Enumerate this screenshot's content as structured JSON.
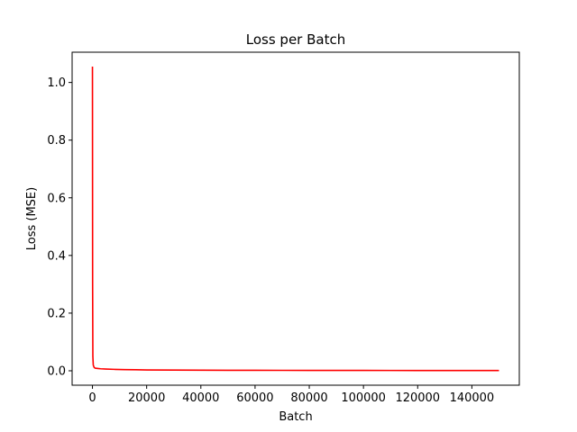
{
  "chart_data": {
    "type": "line",
    "title": "Loss per Batch",
    "xlabel": "Batch",
    "ylabel": "Loss (MSE)",
    "xlim": [
      -7500,
      157500
    ],
    "ylim": [
      -0.05,
      1.105
    ],
    "xticks": [
      0,
      20000,
      40000,
      60000,
      80000,
      100000,
      120000,
      140000
    ],
    "xtick_labels": [
      "0",
      "20000",
      "40000",
      "60000",
      "80000",
      "100000",
      "120000",
      "140000"
    ],
    "yticks": [
      0.0,
      0.2,
      0.4,
      0.6,
      0.8,
      1.0
    ],
    "ytick_labels": [
      "0.0",
      "0.2",
      "0.4",
      "0.6",
      "0.8",
      "1.0"
    ],
    "grid": false,
    "series": [
      {
        "color": "#ff0000",
        "x": [
          0,
          60,
          150,
          300,
          600,
          1000,
          2000,
          3000,
          5000,
          8000,
          12000,
          16000,
          20000,
          30000,
          40000,
          50000,
          60000,
          70000,
          80000,
          90000,
          100000,
          110000,
          120000,
          130000,
          140000,
          150000
        ],
        "y": [
          1.055,
          0.3,
          0.05,
          0.02,
          0.012,
          0.009,
          0.008,
          0.007,
          0.006,
          0.005,
          0.004,
          0.0035,
          0.003,
          0.0025,
          0.002,
          0.0018,
          0.0016,
          0.0015,
          0.0014,
          0.0013,
          0.0012,
          0.0011,
          0.001,
          0.001,
          0.0009,
          0.0009
        ]
      }
    ]
  }
}
